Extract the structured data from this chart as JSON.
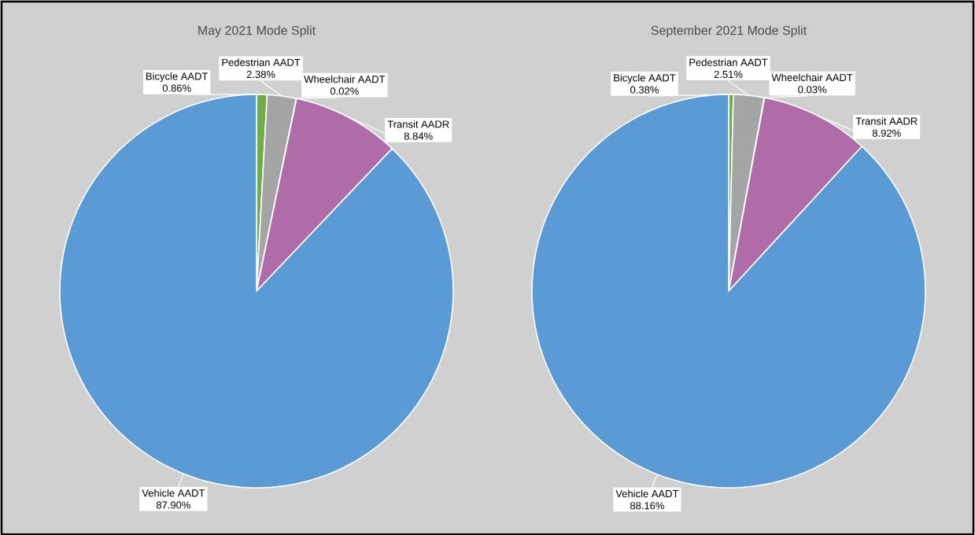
{
  "chart_data": [
    {
      "type": "pie",
      "title": "May 2021 Mode Split",
      "categories": [
        "Bicycle AADT",
        "Pedestrian AADT",
        "Wheelchair AADT",
        "Transit AADR",
        "Vehicle AADT"
      ],
      "values": [
        0.86,
        2.38,
        0.02,
        8.84,
        87.9
      ],
      "value_labels": [
        "0.86%",
        "2.38%",
        "0.02%",
        "8.84%",
        "87.90%"
      ],
      "colors": [
        "#70ad47",
        "#a5a5a5",
        "#ffc000",
        "#b06ca8",
        "#5b9bd5"
      ]
    },
    {
      "type": "pie",
      "title": "September 2021 Mode Split",
      "categories": [
        "Bicycle AADT",
        "Pedestrian AADT",
        "Wheelchair AADT",
        "Transit AADR",
        "Vehicle AADT"
      ],
      "values": [
        0.38,
        2.51,
        0.03,
        8.92,
        88.16
      ],
      "value_labels": [
        "0.38%",
        "2.51%",
        "0.03%",
        "8.92%",
        "88.16%"
      ],
      "colors": [
        "#70ad47",
        "#a5a5a5",
        "#ffc000",
        "#b06ca8",
        "#5b9bd5"
      ]
    }
  ]
}
